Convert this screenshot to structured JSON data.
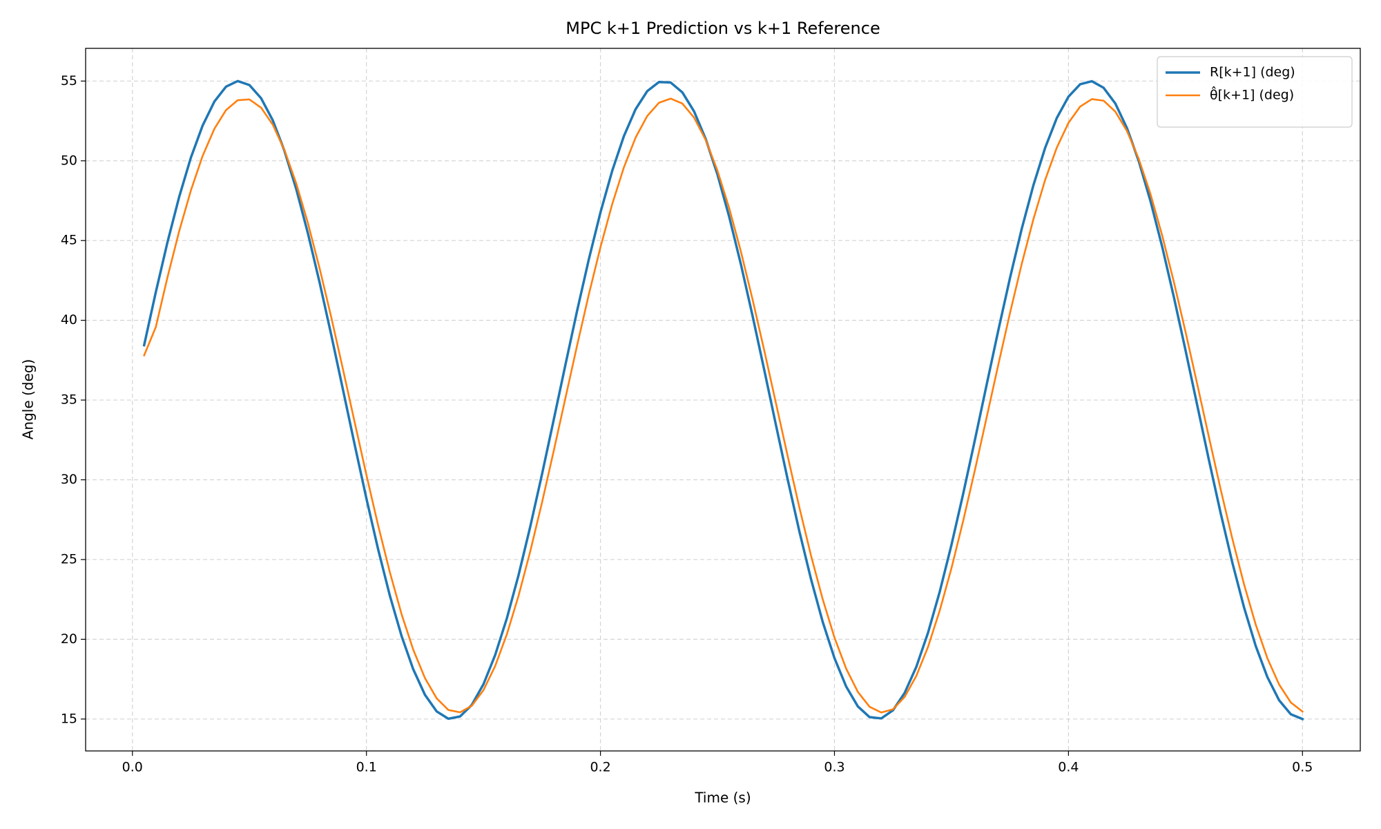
{
  "chart_data": {
    "type": "line",
    "title": "MPC k+1 Prediction vs k+1 Reference",
    "x_label": "Time (s)",
    "y_label": "Angle (deg)",
    "x": [
      0.005,
      0.01,
      0.015,
      0.02,
      0.025,
      0.03,
      0.035,
      0.04,
      0.045,
      0.05,
      0.055,
      0.06,
      0.065,
      0.07,
      0.075,
      0.08,
      0.085,
      0.09,
      0.095,
      0.1,
      0.105,
      0.11,
      0.115,
      0.12,
      0.125,
      0.13,
      0.135,
      0.14,
      0.145,
      0.15,
      0.155,
      0.16,
      0.165,
      0.17,
      0.175,
      0.18,
      0.185,
      0.19,
      0.195,
      0.2,
      0.205,
      0.21,
      0.215,
      0.22,
      0.225,
      0.23,
      0.235,
      0.24,
      0.245,
      0.25,
      0.255,
      0.26,
      0.265,
      0.27,
      0.275,
      0.28,
      0.285,
      0.29,
      0.295,
      0.3,
      0.305,
      0.31,
      0.315,
      0.32,
      0.325,
      0.33,
      0.335,
      0.34,
      0.345,
      0.35,
      0.355,
      0.36,
      0.365,
      0.37,
      0.375,
      0.38,
      0.385,
      0.39,
      0.395,
      0.4,
      0.405,
      0.41,
      0.415,
      0.42,
      0.425,
      0.43,
      0.435,
      0.44,
      0.445,
      0.45,
      0.455,
      0.46,
      0.465,
      0.47,
      0.475,
      0.48,
      0.485,
      0.49,
      0.495,
      0.5
    ],
    "series": [
      {
        "name": "R[k+1] (deg)",
        "color": "#1f77b4",
        "width": 3.5,
        "values": [
          38.44,
          41.77,
          44.91,
          47.75,
          50.21,
          52.21,
          53.71,
          54.65,
          55.0,
          54.75,
          53.92,
          52.53,
          50.61,
          48.23,
          45.45,
          42.36,
          39.06,
          35.63,
          32.18,
          28.82,
          25.64,
          22.74,
          20.21,
          18.12,
          16.52,
          15.48,
          15.02,
          15.16,
          15.88,
          17.18,
          19.01,
          21.31,
          24.02,
          27.06,
          30.33,
          33.74,
          37.19,
          40.58,
          43.8,
          46.76,
          49.36,
          51.54,
          53.23,
          54.37,
          54.94,
          54.91,
          54.29,
          53.1,
          51.36,
          49.14,
          46.5,
          43.52,
          40.28,
          36.88,
          33.43,
          30.03,
          26.77,
          23.76,
          21.08,
          18.82,
          17.04,
          15.79,
          15.12,
          15.04,
          15.55,
          16.64,
          18.28,
          20.42,
          22.99,
          25.92,
          29.12,
          32.49,
          35.94,
          39.36,
          42.65,
          45.72,
          48.46,
          50.8,
          52.68,
          54.02,
          54.8,
          54.99,
          54.58,
          53.6,
          52.05,
          50.0,
          47.5,
          44.64,
          41.48,
          38.13,
          34.69,
          31.25,
          27.93,
          24.82,
          22.01,
          19.59,
          17.63,
          16.18,
          15.3,
          15.0
        ]
      },
      {
        "name": "θ̂[k+1] (deg)",
        "color": "#ff7f0e",
        "width": 2.6,
        "values": [
          37.8,
          39.58,
          42.71,
          45.6,
          48.15,
          50.31,
          52.0,
          53.18,
          53.8,
          53.85,
          53.33,
          52.26,
          50.66,
          48.58,
          46.09,
          43.25,
          40.17,
          36.91,
          33.59,
          30.3,
          27.14,
          24.21,
          21.58,
          19.35,
          17.57,
          16.3,
          15.57,
          15.42,
          15.83,
          16.81,
          18.32,
          20.31,
          22.73,
          25.51,
          28.56,
          31.79,
          35.1,
          38.41,
          41.6,
          44.58,
          47.27,
          49.58,
          51.45,
          52.81,
          53.64,
          53.9,
          53.59,
          52.71,
          51.3,
          49.38,
          47.04,
          44.32,
          41.31,
          38.11,
          34.8,
          31.49,
          28.27,
          25.24,
          22.5,
          20.11,
          18.16,
          16.7,
          15.77,
          15.41,
          15.61,
          16.39,
          17.71,
          19.53,
          21.81,
          24.46,
          27.42,
          30.6,
          33.89,
          37.21,
          40.45,
          43.52,
          46.33,
          48.79,
          50.82,
          52.38,
          53.4,
          53.87,
          53.77,
          53.09,
          51.87,
          50.13,
          47.94,
          45.34,
          42.43,
          39.29,
          36.01,
          32.69,
          29.42,
          26.32,
          23.46,
          20.93,
          18.81,
          17.17,
          16.04,
          15.47
        ]
      }
    ],
    "xlim": [
      -0.02,
      0.5247
    ],
    "ylim": [
      13.0,
      57.05
    ],
    "xticks": [
      {
        "value": 0,
        "label": "0.0"
      },
      0.1,
      0.2,
      0.3,
      0.4,
      0.5
    ],
    "yticks": [
      15,
      20,
      25,
      30,
      35,
      40,
      45,
      50,
      55
    ],
    "grid": true,
    "legend": "upper right"
  }
}
